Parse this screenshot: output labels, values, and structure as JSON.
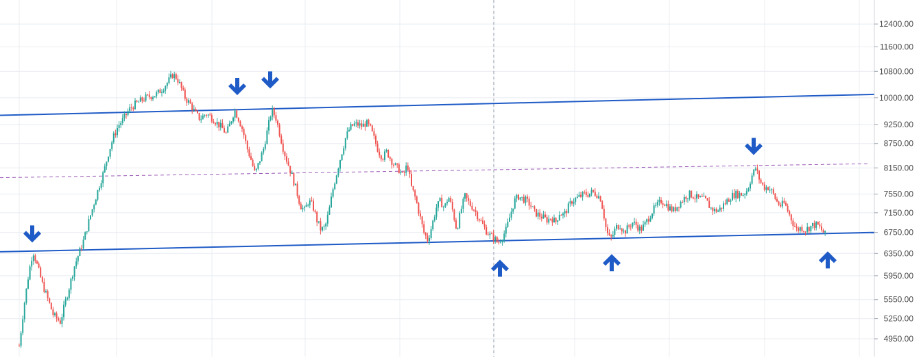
{
  "chart_data": {
    "type": "candlestick",
    "scale": "log",
    "ylim": [
      4700,
      13300
    ],
    "y_ticks": [
      {
        "value": 12400,
        "label": "12400.00"
      },
      {
        "value": 11600,
        "label": "11600.00"
      },
      {
        "value": 10800,
        "label": "10800.00"
      },
      {
        "value": 10000,
        "label": "10000.00"
      },
      {
        "value": 9250,
        "label": "9250.00"
      },
      {
        "value": 8750,
        "label": "8750.00"
      },
      {
        "value": 8150,
        "label": "8150.00"
      },
      {
        "value": 7550,
        "label": "7550.00"
      },
      {
        "value": 7150,
        "label": "7150.00"
      },
      {
        "value": 6750,
        "label": "6750.00"
      },
      {
        "value": 6350,
        "label": "6350.00"
      },
      {
        "value": 5950,
        "label": "5950.00"
      },
      {
        "value": 5550,
        "label": "5550.00"
      },
      {
        "value": 5250,
        "label": "5250.00"
      },
      {
        "value": 4950,
        "label": "4950.00"
      }
    ],
    "x_range": [
      0,
      1275
    ],
    "grid": true,
    "series_price_path": [
      [
        28,
        4850
      ],
      [
        35,
        5450
      ],
      [
        42,
        6000
      ],
      [
        48,
        6400
      ],
      [
        55,
        6100
      ],
      [
        62,
        5800
      ],
      [
        70,
        5550
      ],
      [
        78,
        5300
      ],
      [
        88,
        5200
      ],
      [
        95,
        5500
      ],
      [
        102,
        5800
      ],
      [
        108,
        6100
      ],
      [
        115,
        6350
      ],
      [
        122,
        6600
      ],
      [
        130,
        7000
      ],
      [
        138,
        7400
      ],
      [
        146,
        7800
      ],
      [
        152,
        8100
      ],
      [
        158,
        8500
      ],
      [
        165,
        8900
      ],
      [
        172,
        9200
      ],
      [
        180,
        9400
      ],
      [
        188,
        9650
      ],
      [
        196,
        9800
      ],
      [
        204,
        9900
      ],
      [
        212,
        10000
      ],
      [
        220,
        10050
      ],
      [
        228,
        10100
      ],
      [
        236,
        10250
      ],
      [
        244,
        10450
      ],
      [
        252,
        10700
      ],
      [
        258,
        10600
      ],
      [
        264,
        10300
      ],
      [
        270,
        10000
      ],
      [
        278,
        9800
      ],
      [
        285,
        9550
      ],
      [
        292,
        9400
      ],
      [
        300,
        9550
      ],
      [
        308,
        9450
      ],
      [
        316,
        9300
      ],
      [
        324,
        9150
      ],
      [
        330,
        9000
      ],
      [
        336,
        9300
      ],
      [
        342,
        9650
      ],
      [
        348,
        9400
      ],
      [
        354,
        9100
      ],
      [
        360,
        8650
      ],
      [
        366,
        8350
      ],
      [
        372,
        8000
      ],
      [
        378,
        8300
      ],
      [
        384,
        8600
      ],
      [
        390,
        9100
      ],
      [
        396,
        9650
      ],
      [
        402,
        9450
      ],
      [
        408,
        9000
      ],
      [
        414,
        8550
      ],
      [
        420,
        8250
      ],
      [
        426,
        7950
      ],
      [
        432,
        7650
      ],
      [
        438,
        7300
      ],
      [
        444,
        7200
      ],
      [
        450,
        7400
      ],
      [
        456,
        7300
      ],
      [
        462,
        7000
      ],
      [
        468,
        6800
      ],
      [
        474,
        6850
      ],
      [
        480,
        7200
      ],
      [
        486,
        7700
      ],
      [
        492,
        8100
      ],
      [
        498,
        8500
      ],
      [
        504,
        8900
      ],
      [
        510,
        9150
      ],
      [
        516,
        9250
      ],
      [
        522,
        9250
      ],
      [
        528,
        9200
      ],
      [
        534,
        9300
      ],
      [
        540,
        9150
      ],
      [
        546,
        8850
      ],
      [
        552,
        8550
      ],
      [
        558,
        8400
      ],
      [
        564,
        8550
      ],
      [
        570,
        8350
      ],
      [
        576,
        8200
      ],
      [
        582,
        8100
      ],
      [
        588,
        7950
      ],
      [
        594,
        8250
      ],
      [
        600,
        7700
      ],
      [
        606,
        7450
      ],
      [
        612,
        7100
      ],
      [
        618,
        6750
      ],
      [
        624,
        6600
      ],
      [
        630,
        6900
      ],
      [
        636,
        7250
      ],
      [
        642,
        7400
      ],
      [
        648,
        7250
      ],
      [
        654,
        7500
      ],
      [
        660,
        7200
      ],
      [
        666,
        6800
      ],
      [
        672,
        7200
      ],
      [
        678,
        7500
      ],
      [
        684,
        7350
      ],
      [
        690,
        7250
      ],
      [
        696,
        7100
      ],
      [
        702,
        6950
      ],
      [
        708,
        6800
      ],
      [
        714,
        6700
      ],
      [
        720,
        6650
      ],
      [
        726,
        6550
      ],
      [
        732,
        6650
      ],
      [
        738,
        6800
      ],
      [
        744,
        7100
      ],
      [
        750,
        7400
      ],
      [
        756,
        7500
      ],
      [
        762,
        7450
      ],
      [
        768,
        7400
      ],
      [
        774,
        7300
      ],
      [
        780,
        7150
      ],
      [
        786,
        7100
      ],
      [
        792,
        7050
      ],
      [
        798,
        7000
      ],
      [
        804,
        7050
      ],
      [
        810,
        6950
      ],
      [
        816,
        7150
      ],
      [
        822,
        7100
      ],
      [
        828,
        7250
      ],
      [
        834,
        7400
      ],
      [
        840,
        7450
      ],
      [
        846,
        7500
      ],
      [
        852,
        7550
      ],
      [
        858,
        7550
      ],
      [
        864,
        7600
      ],
      [
        870,
        7550
      ],
      [
        876,
        7450
      ],
      [
        880,
        7150
      ],
      [
        884,
        6800
      ],
      [
        888,
        6650
      ],
      [
        892,
        6650
      ],
      [
        898,
        6850
      ],
      [
        904,
        6900
      ],
      [
        910,
        6750
      ],
      [
        916,
        6850
      ],
      [
        922,
        6950
      ],
      [
        928,
        6900
      ],
      [
        934,
        6800
      ],
      [
        940,
        6900
      ],
      [
        946,
        7050
      ],
      [
        952,
        7200
      ],
      [
        958,
        7300
      ],
      [
        964,
        7400
      ],
      [
        970,
        7350
      ],
      [
        976,
        7250
      ],
      [
        982,
        7200
      ],
      [
        988,
        7300
      ],
      [
        994,
        7400
      ],
      [
        1000,
        7500
      ],
      [
        1006,
        7550
      ],
      [
        1012,
        7500
      ],
      [
        1018,
        7450
      ],
      [
        1024,
        7450
      ],
      [
        1030,
        7400
      ],
      [
        1036,
        7250
      ],
      [
        1042,
        7200
      ],
      [
        1048,
        7200
      ],
      [
        1054,
        7300
      ],
      [
        1060,
        7400
      ],
      [
        1066,
        7500
      ],
      [
        1072,
        7550
      ],
      [
        1078,
        7550
      ],
      [
        1084,
        7550
      ],
      [
        1090,
        7650
      ],
      [
        1096,
        7950
      ],
      [
        1102,
        8150
      ],
      [
        1108,
        7850
      ],
      [
        1114,
        7700
      ],
      [
        1120,
        7700
      ],
      [
        1126,
        7600
      ],
      [
        1132,
        7400
      ],
      [
        1138,
        7300
      ],
      [
        1144,
        7350
      ],
      [
        1150,
        7150
      ],
      [
        1156,
        6950
      ],
      [
        1162,
        6800
      ],
      [
        1168,
        6850
      ],
      [
        1174,
        6800
      ],
      [
        1180,
        6850
      ],
      [
        1186,
        6900
      ],
      [
        1192,
        6900
      ],
      [
        1198,
        6800
      ],
      [
        1204,
        6700
      ]
    ],
    "trendlines": [
      {
        "kind": "resistance",
        "color": "#1f5bc6",
        "from": [
          0,
          9500
        ],
        "to": [
          1275,
          10100
        ]
      },
      {
        "kind": "support",
        "color": "#1f5bc6",
        "from": [
          0,
          6380
        ],
        "to": [
          1275,
          6750
        ]
      },
      {
        "kind": "midline",
        "color": "#9b59b6",
        "dashed": true,
        "from": [
          0,
          7920
        ],
        "to": [
          1268,
          8250
        ]
      }
    ],
    "crosshair_x": 720,
    "markers": [
      {
        "direction": "down",
        "x": 47,
        "value": 6700
      },
      {
        "direction": "down",
        "x": 346,
        "value": 10300
      },
      {
        "direction": "down",
        "x": 394,
        "value": 10500
      },
      {
        "direction": "down",
        "x": 1099,
        "value": 8650
      },
      {
        "direction": "up",
        "x": 729,
        "value": 6100
      },
      {
        "direction": "up",
        "x": 892,
        "value": 6200
      },
      {
        "direction": "up",
        "x": 1207,
        "value": 6250
      }
    ],
    "colors": {
      "up": "#26a69a",
      "down": "#ef5350",
      "grid": "#e8ecf2",
      "axis": "#d1d4dc",
      "text": "#4a4a4a",
      "marker": "#1f5bc6"
    }
  }
}
